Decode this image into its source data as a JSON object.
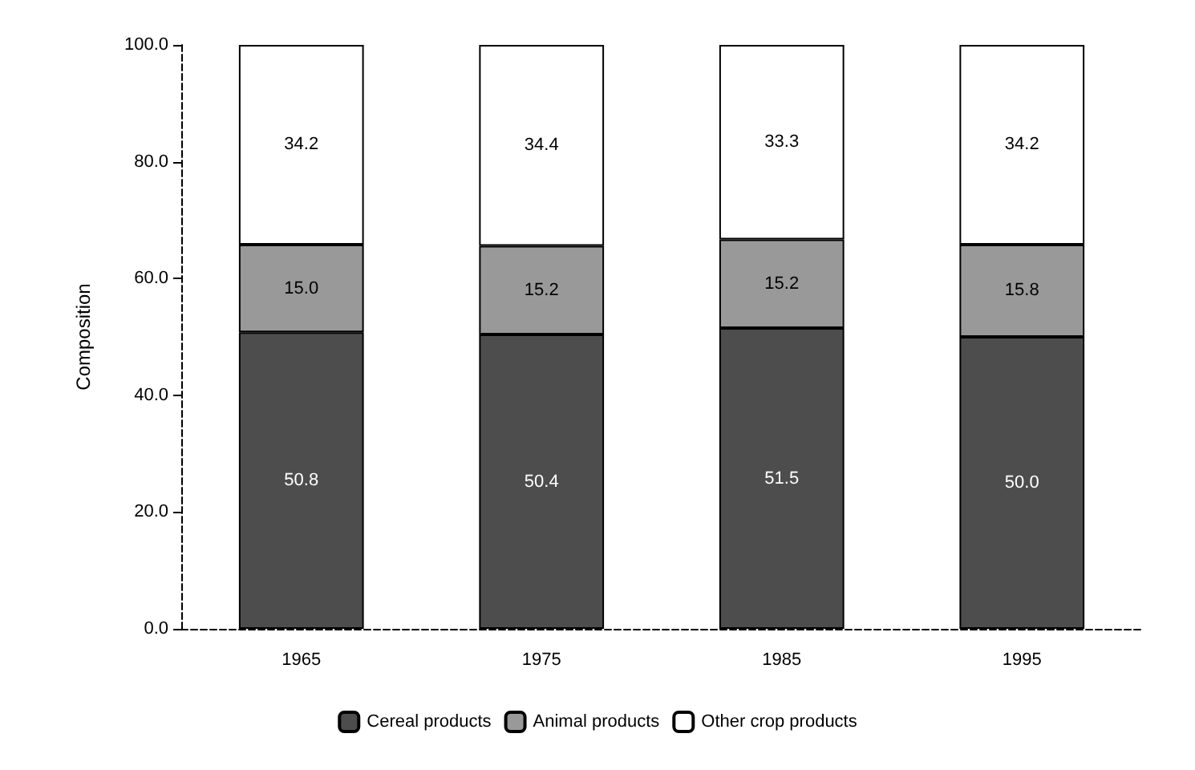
{
  "chart_data": {
    "type": "bar",
    "stacked": true,
    "ylabel": "Composition",
    "categories": [
      "1965",
      "1975",
      "1985",
      "1995"
    ],
    "series": [
      {
        "name": "Cereal products",
        "color": "#4d4d4d",
        "values": [
          50.8,
          50.4,
          51.5,
          50.0
        ],
        "value_labels": [
          "50.8",
          "50.4",
          "51.5",
          "50.0"
        ]
      },
      {
        "name": "Animal products",
        "color": "#999999",
        "values": [
          15.0,
          15.2,
          15.2,
          15.8
        ],
        "value_labels": [
          "15.0",
          "15.2",
          "15.2",
          "15.8"
        ]
      },
      {
        "name": "Other crop products",
        "color": "#ffffff",
        "values": [
          34.2,
          34.4,
          33.3,
          34.2
        ],
        "value_labels": [
          "34.2",
          "34.4",
          "33.3",
          "34.2"
        ]
      }
    ],
    "ylim": [
      0,
      100
    ],
    "yticks": [
      {
        "value": 0,
        "label": "0.0"
      },
      {
        "value": 20,
        "label": "20.0"
      },
      {
        "value": 40,
        "label": "40.0"
      },
      {
        "value": 60,
        "label": "60.0"
      },
      {
        "value": 80,
        "label": "80.0"
      },
      {
        "value": 100,
        "label": "100.0"
      }
    ],
    "grid": false,
    "legend": "bottom"
  }
}
